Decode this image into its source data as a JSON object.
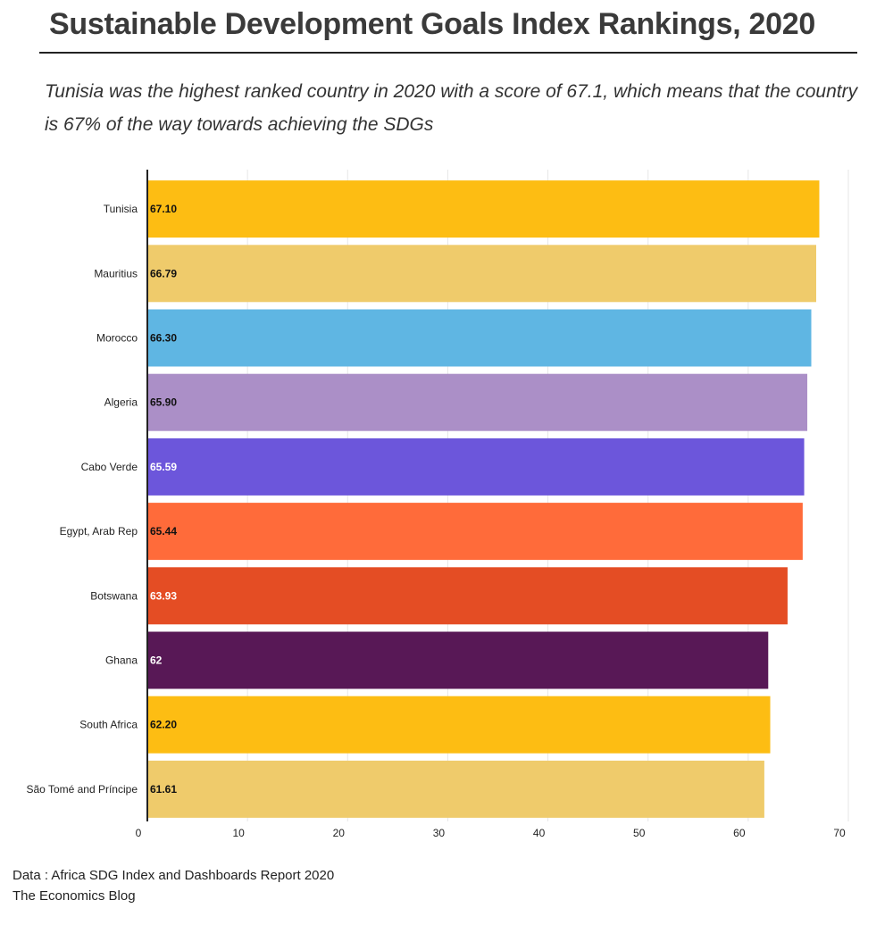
{
  "header": {
    "title": "Sustainable Development Goals Index Rankings, 2020",
    "subtitle": "Tunisia was the highest ranked country in 2020 with a score of 67.1, which means that the country is 67% of the way towards achieving the SDGs"
  },
  "footer": {
    "source": "Data : Africa SDG Index and Dashboards Report 2020",
    "credit": "The Economics Blog"
  },
  "chart_data": {
    "type": "bar",
    "orientation": "horizontal",
    "title": "",
    "xlabel": "",
    "ylabel": "",
    "xlim": [
      0,
      70
    ],
    "ticks": [
      0,
      10,
      20,
      30,
      40,
      50,
      60,
      70
    ],
    "grid": true,
    "legend": "none",
    "bars": [
      {
        "category": "Tunisia",
        "value": 67.1,
        "label": "67.10",
        "color": "#FDBD13",
        "label_color": "#111111"
      },
      {
        "category": "Mauritius",
        "value": 66.79,
        "label": "66.79",
        "color": "#EFCB6B",
        "label_color": "#111111"
      },
      {
        "category": "Morocco",
        "value": 66.3,
        "label": "66.30",
        "color": "#5FB6E3",
        "label_color": "#111111"
      },
      {
        "category": "Algeria",
        "value": 65.9,
        "label": "65.90",
        "color": "#AB8FC7",
        "label_color": "#111111"
      },
      {
        "category": "Cabo Verde",
        "value": 65.59,
        "label": "65.59",
        "color": "#6C56DB",
        "label_color": "#ffffff"
      },
      {
        "category": "Egypt, Arab Rep",
        "value": 65.44,
        "label": "65.44",
        "color": "#FF6B3A",
        "label_color": "#111111"
      },
      {
        "category": "Botswana",
        "value": 63.93,
        "label": "63.93",
        "color": "#E44D24",
        "label_color": "#ffffff"
      },
      {
        "category": "Ghana",
        "value": 62.0,
        "label": "62",
        "color": "#581856",
        "label_color": "#ffffff"
      },
      {
        "category": "South Africa",
        "value": 62.2,
        "label": "62.20",
        "color": "#FDBD13",
        "label_color": "#111111"
      },
      {
        "category": "São Tomé and Príncipe",
        "value": 61.61,
        "label": "61.61",
        "color": "#EFCB6B",
        "label_color": "#111111"
      }
    ]
  }
}
